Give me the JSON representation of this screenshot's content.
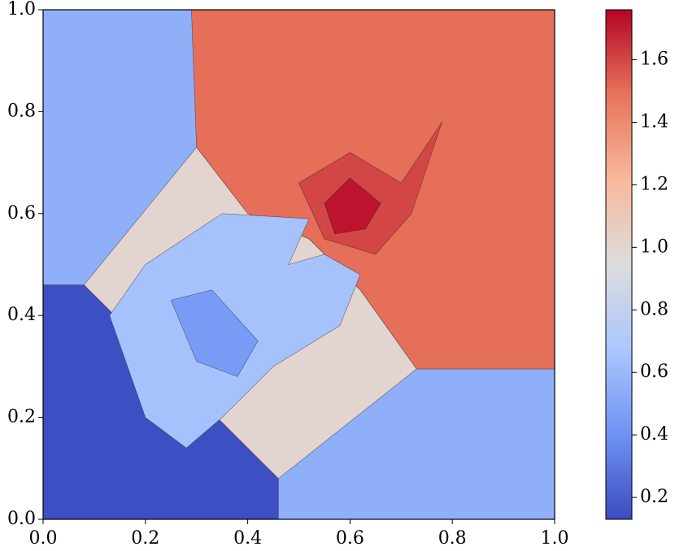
{
  "chart_data": {
    "type": "heatmap",
    "xlim": [
      0,
      1
    ],
    "ylim": [
      0,
      1
    ],
    "xticks": [
      {
        "value": 0,
        "label": "0.0"
      },
      0.2,
      0.4,
      0.6,
      0.8,
      {
        "value": 1,
        "label": "1.0"
      }
    ],
    "yticks": [
      {
        "value": 0,
        "label": "0.0"
      },
      0.2,
      0.4,
      0.6,
      0.8,
      {
        "value": 1,
        "label": "1.0"
      }
    ],
    "colormap": [
      "#3b4cc0",
      "#6f92f3",
      "#aac7fd",
      "#dddcdc",
      "#f7b89c",
      "#e7745b",
      "#b40426"
    ],
    "clim": [
      0.13,
      1.76
    ],
    "cticks": [
      0.2,
      0.4,
      0.6,
      0.8,
      {
        "value": 1,
        "label": "1.0"
      },
      1.2,
      1.4,
      1.6
    ],
    "regions": [
      {
        "value": 0.55,
        "points": [
          [
            0,
            0
          ],
          [
            1,
            0
          ],
          [
            1,
            1
          ],
          [
            0,
            1
          ]
        ]
      },
      {
        "value": 0.14,
        "points": [
          [
            0,
            0
          ],
          [
            0.46,
            0
          ],
          [
            0.46,
            0.08
          ],
          [
            0.08,
            0.46
          ],
          [
            0,
            0.46
          ]
        ]
      },
      {
        "value": 1.5,
        "points": [
          [
            0.29,
            1
          ],
          [
            1,
            1
          ],
          [
            1,
            0.295
          ],
          [
            0.73,
            0.295
          ],
          [
            0.62,
            0.45
          ],
          [
            0.52,
            0.55
          ],
          [
            0.4,
            0.6
          ],
          [
            0.3,
            0.73
          ]
        ]
      },
      {
        "value": 1.0,
        "points": [
          [
            0.3,
            0.73
          ],
          [
            0.08,
            0.46
          ],
          [
            0.46,
            0.08
          ],
          [
            0.73,
            0.295
          ],
          [
            0.62,
            0.45
          ],
          [
            0.52,
            0.55
          ],
          [
            0.4,
            0.6
          ]
        ]
      },
      {
        "value": 0.65,
        "points": [
          [
            0.2,
            0.5
          ],
          [
            0.35,
            0.6
          ],
          [
            0.52,
            0.59
          ],
          [
            0.48,
            0.5
          ],
          [
            0.55,
            0.52
          ],
          [
            0.62,
            0.48
          ],
          [
            0.58,
            0.38
          ],
          [
            0.45,
            0.3
          ],
          [
            0.35,
            0.2
          ],
          [
            0.28,
            0.14
          ],
          [
            0.2,
            0.2
          ],
          [
            0.13,
            0.4
          ]
        ]
      },
      {
        "value": 0.45,
        "points": [
          [
            0.25,
            0.43
          ],
          [
            0.33,
            0.45
          ],
          [
            0.42,
            0.35
          ],
          [
            0.38,
            0.28
          ],
          [
            0.3,
            0.31
          ]
        ]
      },
      {
        "value": 1.6,
        "points": [
          [
            0.5,
            0.66
          ],
          [
            0.6,
            0.72
          ],
          [
            0.7,
            0.66
          ],
          [
            0.78,
            0.78
          ],
          [
            0.72,
            0.6
          ],
          [
            0.65,
            0.52
          ],
          [
            0.55,
            0.55
          ]
        ]
      },
      {
        "value": 1.72,
        "points": [
          [
            0.55,
            0.62
          ],
          [
            0.6,
            0.67
          ],
          [
            0.66,
            0.62
          ],
          [
            0.63,
            0.57
          ],
          [
            0.57,
            0.56
          ]
        ]
      }
    ]
  }
}
